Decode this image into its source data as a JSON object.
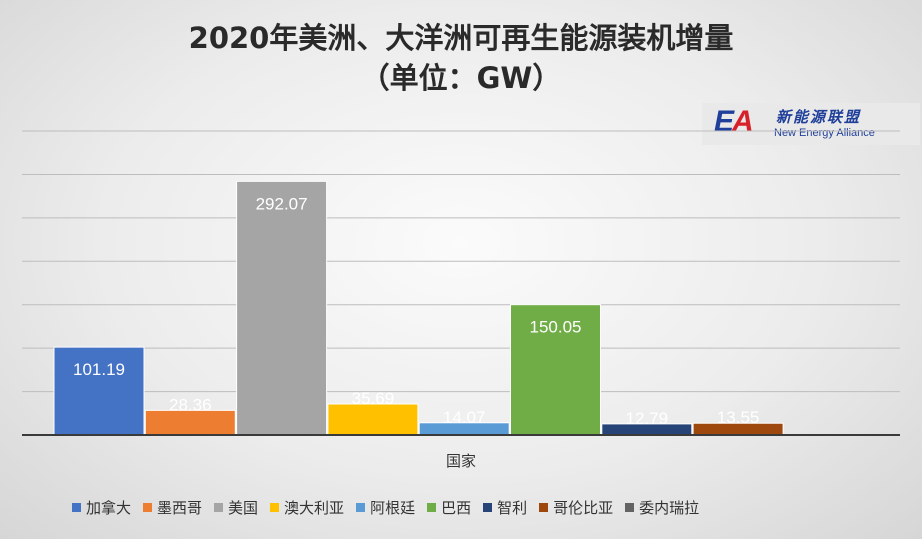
{
  "chart_data": {
    "type": "bar",
    "title_line1": "2020年美洲、大洋洲可再生能源装机增量",
    "title_line2": "（单位：GW）",
    "xlabel": "国家",
    "ylabel": "",
    "ylim": [
      0,
      350
    ],
    "grid": true,
    "legend_position": "bottom",
    "series": [
      {
        "name": "加拿大",
        "value": 101.19,
        "label": "101.19",
        "color": "#4472C4"
      },
      {
        "name": "墨西哥",
        "value": 28.36,
        "label": "28.36",
        "color": "#ED7D31"
      },
      {
        "name": "美国",
        "value": 292.07,
        "label": "292.07",
        "color": "#A5A5A5"
      },
      {
        "name": "澳大利亚",
        "value": 35.69,
        "label": "35.69",
        "color": "#FFC000"
      },
      {
        "name": "阿根廷",
        "value": 14.07,
        "label": "14.07",
        "color": "#5B9BD5"
      },
      {
        "name": "巴西",
        "value": 150.05,
        "label": "150.05",
        "color": "#70AD47"
      },
      {
        "name": "智利",
        "value": 12.79,
        "label": "12.79",
        "color": "#264478"
      },
      {
        "name": "哥伦比亚",
        "value": 13.55,
        "label": "13.55",
        "color": "#9E480E"
      },
      {
        "name": "委内瑞拉",
        "value": null,
        "label": "",
        "color": "#636363"
      }
    ]
  },
  "logo": {
    "mark_e": "E",
    "mark_a": "A",
    "cn_text": "新能源联盟",
    "en_text": "New Energy  Alliance"
  }
}
